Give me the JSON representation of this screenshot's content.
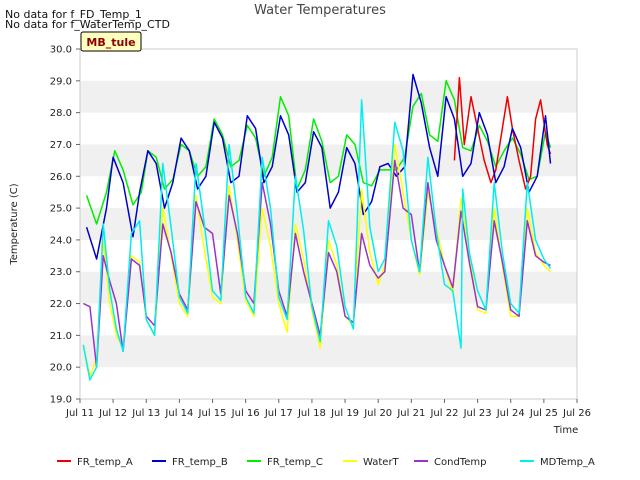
{
  "notes": [
    "No data for f_FD_Temp_1",
    "No data for f_WaterTemp_CTD"
  ],
  "badge": "MB_tule",
  "colors": {
    "badge_bg": "#ffffc0",
    "badge_text": "#8b0000",
    "band": "#f0f0f0",
    "FR_temp_A": "#ee0000",
    "FR_temp_B": "#0000cc",
    "FR_temp_C": "#00ee00",
    "WaterT": "#ffff00",
    "CondTemp": "#9933cc",
    "MDTemp_A": "#00eeee"
  },
  "chart_data": {
    "type": "line",
    "title": "Water Temperatures",
    "xlabel": "Time",
    "ylabel": "Temperature (C)",
    "xlim": [
      11,
      26
    ],
    "ylim": [
      19,
      30
    ],
    "x_unit": "day of July",
    "xticks": [
      11,
      12,
      13,
      14,
      15,
      16,
      17,
      18,
      19,
      20,
      21,
      22,
      23,
      24,
      25,
      26
    ],
    "xtick_labels": [
      "Jul 11",
      "Jul 12",
      "Jul 13",
      "Jul 14",
      "Jul 15",
      "Jul 16",
      "Jul 17",
      "Jul 18",
      "Jul 19",
      "Jul 20",
      "Jul 21",
      "Jul 22",
      "Jul 23",
      "Jul 24",
      "Jul 25",
      "Jul 26"
    ],
    "yticks": [
      19,
      20,
      21,
      22,
      23,
      24,
      25,
      26,
      27,
      28,
      29,
      30
    ],
    "ytick_labels": [
      "19.0",
      "20.0",
      "21.0",
      "22.0",
      "23.0",
      "24.0",
      "25.0",
      "26.0",
      "27.0",
      "28.0",
      "29.0",
      "30.0"
    ],
    "grid": "horizontal bands",
    "legend": "bottom",
    "series": [
      {
        "name": "FR_temp_A",
        "x": [
          22.3,
          22.45,
          22.6,
          22.8,
          23,
          23.2,
          23.4,
          23.55,
          23.7,
          23.9,
          24.05,
          24.25,
          24.45,
          24.6,
          24.75,
          24.9,
          25.1,
          25.2
        ],
        "y": [
          26.5,
          29.1,
          27,
          28.5,
          27.5,
          26.5,
          25.8,
          26.2,
          27.2,
          28.5,
          27.5,
          26.5,
          25.6,
          26.0,
          27.8,
          28.4,
          27.0,
          26.7
        ]
      },
      {
        "name": "FR_temp_B",
        "x": [
          11.2,
          11.5,
          11.8,
          12.0,
          12.3,
          12.6,
          12.8,
          13.05,
          13.3,
          13.55,
          13.8,
          14.05,
          14.3,
          14.55,
          14.8,
          15.05,
          15.3,
          15.55,
          15.8,
          16.05,
          16.3,
          16.55,
          16.8,
          17.05,
          17.3,
          17.55,
          17.8,
          18.05,
          18.3,
          18.55,
          18.8,
          19.05,
          19.3,
          19.55,
          19.8,
          20.05,
          20.3,
          20.55,
          20.8,
          21.05,
          21.3,
          21.55,
          21.8,
          22.05,
          22.3,
          22.55,
          22.8,
          23.05,
          23.3,
          23.55,
          23.8,
          24.05,
          24.3,
          24.55,
          24.8,
          25.05,
          25.2
        ],
        "y": [
          24.4,
          23.4,
          25.0,
          26.6,
          25.8,
          24.1,
          25.5,
          26.8,
          26.4,
          25.0,
          25.8,
          27.2,
          26.8,
          25.6,
          26.0,
          27.7,
          27.2,
          25.8,
          26.0,
          27.9,
          27.5,
          25.8,
          26.3,
          27.9,
          27.3,
          25.5,
          25.8,
          27.4,
          26.9,
          25.0,
          25.5,
          26.9,
          26.4,
          24.8,
          25.2,
          26.3,
          26.4,
          26.0,
          26.3,
          29.2,
          28.3,
          26.9,
          26.0,
          28.5,
          27.8,
          26.0,
          26.4,
          28.0,
          27.3,
          25.8,
          26.3,
          27.5,
          26.9,
          25.5,
          26.0,
          27.9,
          26.4
        ]
      },
      {
        "name": "FR_temp_C",
        "x": [
          11.2,
          11.5,
          11.8,
          12.05,
          12.3,
          12.6,
          12.85,
          13.05,
          13.3,
          13.55,
          13.8,
          14.05,
          14.3,
          14.55,
          14.8,
          15.05,
          15.3,
          15.55,
          15.8,
          16.05,
          16.3,
          16.55,
          16.8,
          17.05,
          17.3,
          17.55,
          17.8,
          18.05,
          18.3,
          18.55,
          18.8,
          19.05,
          19.3,
          19.55,
          19.8,
          20.05,
          20.3,
          20.55,
          20.8,
          21.05,
          21.3,
          21.55,
          21.8,
          22.05,
          22.3,
          22.55,
          22.8,
          23.05,
          23.3,
          23.55,
          23.8,
          24.05,
          24.3,
          24.55,
          24.8,
          25.05,
          25.2
        ],
        "y": [
          25.4,
          24.5,
          25.5,
          26.8,
          26.2,
          25.1,
          25.5,
          26.8,
          26.6,
          25.6,
          25.9,
          27.0,
          26.8,
          26.0,
          26.3,
          27.8,
          27.3,
          26.3,
          26.5,
          27.6,
          27.2,
          26.0,
          26.6,
          28.5,
          27.9,
          25.6,
          26.2,
          27.8,
          27.1,
          25.8,
          26.0,
          27.3,
          27.0,
          25.8,
          25.7,
          26.2,
          26.2,
          26.2,
          26.6,
          28.2,
          28.6,
          27.3,
          27.1,
          29.0,
          28.4,
          26.9,
          26.8,
          27.6,
          27.1,
          26.3,
          26.8,
          27.2,
          26.7,
          25.9,
          26.0,
          27.4,
          26.9
        ]
      },
      {
        "name": "WaterT",
        "x": [
          11.1,
          11.3,
          11.5,
          11.7,
          11.9,
          12.1,
          12.3,
          12.55,
          12.8,
          13.0,
          13.25,
          13.5,
          13.75,
          14.0,
          14.25,
          14.5,
          14.75,
          15.0,
          15.25,
          15.5,
          15.75,
          16.0,
          16.25,
          16.5,
          16.75,
          17.0,
          17.25,
          17.5,
          17.75,
          18.0,
          18.25,
          18.5,
          18.75,
          19.0,
          19.25,
          19.5,
          19.75,
          20.0,
          20.2,
          20.5,
          20.75,
          21.0,
          21.25,
          21.5,
          21.75,
          22.0,
          22.25,
          22.5,
          22.75,
          23.0,
          23.25,
          23.5,
          23.75,
          24.0,
          24.25,
          24.5,
          24.75,
          25.0,
          25.2
        ],
        "y": [
          20.7,
          19.7,
          20.3,
          24.0,
          22.0,
          21.0,
          20.6,
          23.5,
          23.3,
          21.5,
          21.0,
          25.0,
          23.5,
          22.0,
          21.6,
          25.4,
          23.7,
          22.2,
          22.0,
          25.7,
          24.0,
          22.1,
          21.6,
          25.0,
          23.8,
          22.0,
          21.1,
          24.5,
          23.4,
          21.8,
          20.6,
          24.0,
          23.2,
          21.6,
          21.3,
          25.6,
          23.6,
          22.6,
          23.2,
          27.0,
          25.5,
          24.0,
          22.9,
          25.5,
          24.4,
          23.2,
          22.3,
          25.3,
          23.6,
          21.8,
          21.7,
          25.0,
          23.2,
          21.6,
          21.6,
          25.0,
          23.6,
          23.2,
          23.0
        ]
      },
      {
        "name": "CondTemp",
        "x": [
          11.1,
          11.3,
          11.5,
          11.7,
          11.9,
          12.1,
          12.3,
          12.55,
          12.8,
          13.0,
          13.25,
          13.5,
          13.75,
          14.0,
          14.25,
          14.5,
          14.75,
          15.0,
          15.25,
          15.5,
          15.75,
          16.0,
          16.25,
          16.5,
          16.75,
          17.0,
          17.25,
          17.5,
          17.75,
          18.0,
          18.25,
          18.5,
          18.75,
          19.0,
          19.25,
          19.5,
          19.75,
          20.0,
          20.2,
          20.5,
          20.75,
          21.0,
          21.25,
          21.5,
          21.75,
          22.0,
          22.25,
          22.5,
          22.75,
          23.0,
          23.25,
          23.5,
          23.75,
          24.0,
          24.25,
          24.5,
          24.75,
          25.0,
          25.2
        ],
        "y": [
          22.0,
          21.9,
          20.0,
          23.5,
          22.7,
          22.0,
          20.5,
          23.4,
          23.2,
          21.6,
          21.3,
          24.5,
          23.6,
          22.3,
          21.8,
          25.2,
          24.4,
          24.2,
          22.3,
          25.4,
          24.2,
          22.4,
          22.0,
          25.8,
          24.5,
          22.4,
          21.6,
          24.2,
          23.0,
          22.0,
          21.0,
          23.6,
          23.0,
          21.6,
          21.4,
          24.2,
          23.2,
          22.8,
          23.0,
          26.5,
          25.0,
          24.8,
          23.0,
          25.8,
          24.0,
          23.2,
          22.5,
          24.9,
          23.3,
          21.9,
          21.8,
          24.6,
          23.3,
          21.8,
          21.6,
          24.6,
          23.5,
          23.3,
          23.2
        ]
      },
      {
        "name": "MDTemp_A",
        "x": [
          11.1,
          11.3,
          11.5,
          11.7,
          11.9,
          12.1,
          12.3,
          12.55,
          12.8,
          13.0,
          13.25,
          13.5,
          13.75,
          14.0,
          14.25,
          14.5,
          14.75,
          15.0,
          15.25,
          15.5,
          15.75,
          16.0,
          16.25,
          16.5,
          16.75,
          17.0,
          17.25,
          17.5,
          17.75,
          18.0,
          18.25,
          18.5,
          18.75,
          19.0,
          19.25,
          19.5,
          19.75,
          20.0,
          20.2,
          20.5,
          20.75,
          21.0,
          21.25,
          21.5,
          21.75,
          22.0,
          22.25,
          22.5,
          22.55,
          22.75,
          23.0,
          23.25,
          23.5,
          23.75,
          24.0,
          24.25,
          24.5,
          24.75,
          25.0,
          25.2
        ],
        "y": [
          20.7,
          19.6,
          20.0,
          24.5,
          22.4,
          21.2,
          20.5,
          24.2,
          24.6,
          21.5,
          21.0,
          26.4,
          24.4,
          22.2,
          21.7,
          26.4,
          24.5,
          22.4,
          22.1,
          27.0,
          24.8,
          22.2,
          21.7,
          26.6,
          25.0,
          22.2,
          21.5,
          26.0,
          24.3,
          21.9,
          20.8,
          24.6,
          23.8,
          21.9,
          21.2,
          28.4,
          24.4,
          23.0,
          23.4,
          27.7,
          26.8,
          24.0,
          23.0,
          26.6,
          24.3,
          22.6,
          22.4,
          20.6,
          25.6,
          23.6,
          22.4,
          21.8,
          25.8,
          23.6,
          22.0,
          21.7,
          25.8,
          24.0,
          23.4,
          23.1
        ]
      }
    ]
  }
}
